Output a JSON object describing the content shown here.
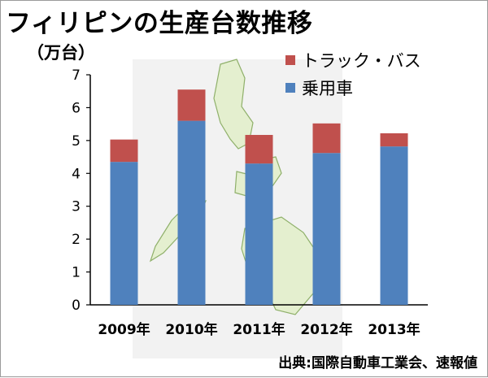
{
  "title": "フィリピンの生産台数推移",
  "unit_label": "（万台）",
  "source": "出典:国際自動車工業会、速報値",
  "colors": {
    "passenger": "#4f81bd",
    "truck_bus": "#c0504d",
    "axis": "#000000",
    "map_fill": "#e4efcf",
    "map_stroke": "#8fb06a"
  },
  "chart_data": {
    "type": "bar",
    "stacked": true,
    "categories": [
      "2009年",
      "2010年",
      "2011年",
      "2012年",
      "2013年"
    ],
    "series": [
      {
        "name": "乗用車",
        "values": [
          4.35,
          5.6,
          4.3,
          4.62,
          4.82
        ]
      },
      {
        "name": "トラック・バス",
        "values": [
          0.68,
          0.95,
          0.87,
          0.9,
          0.4
        ]
      }
    ],
    "ylim": [
      0,
      7
    ],
    "yticks": [
      0,
      1,
      2,
      3,
      4,
      5,
      6,
      7
    ],
    "grid": false,
    "legend_position": "top-right"
  }
}
